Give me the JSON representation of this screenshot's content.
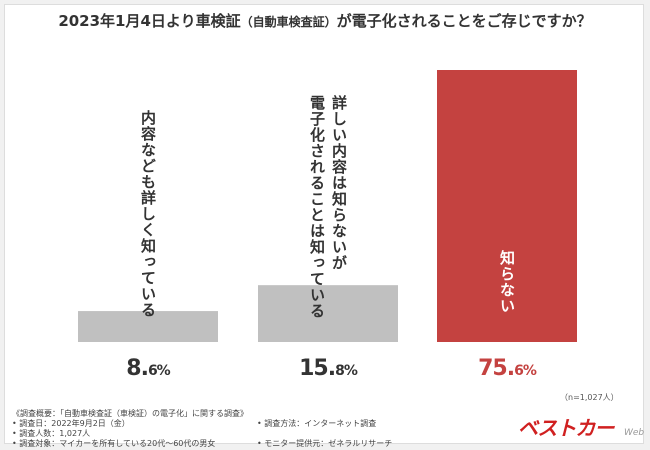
{
  "chart_data": {
    "type": "bar",
    "title": "2023年1月4日より車検証",
    "title_paren": "（自動車検査証）",
    "title_tail": "が電子化されることをご存じですか？",
    "categories": [
      "内容なども詳しく知っている",
      "詳しい内容は知らないが\n電子化されることは知っている",
      "知らない"
    ],
    "values": [
      8.6,
      15.8,
      75.6
    ],
    "value_labels": [
      {
        "main": "8.",
        "small": "6%"
      },
      {
        "main": "15.",
        "small": "8%"
      },
      {
        "main": "75.",
        "small": "6%"
      }
    ],
    "colors": [
      "#c0c0c0",
      "#c0c0c0",
      "#c44240"
    ],
    "label_colors": [
      "#333333",
      "#333333",
      "#ffffff"
    ],
    "value_colors": [
      "#333333",
      "#333333",
      "#c44240"
    ],
    "ylim": [
      0,
      75.6
    ],
    "grid": false,
    "legend": false,
    "sample_size": "（n=1,027人）"
  },
  "notes": {
    "heading": "《調査概要：「自動車検査証（車検証）の電子化」に関する調査》",
    "items": [
      "• 調査日：2022年9月2日（金）",
      "• 調査方法：インターネット調査",
      "• 調査人数：1,027人",
      "• 調査対象：マイカーを所有している20代～60代の男女",
      "• モニター提供元：ゼネラルリサーチ"
    ]
  },
  "logo": {
    "text": "ベストカーWeb",
    "mark": "ベストカー",
    "suffix": "Web"
  }
}
